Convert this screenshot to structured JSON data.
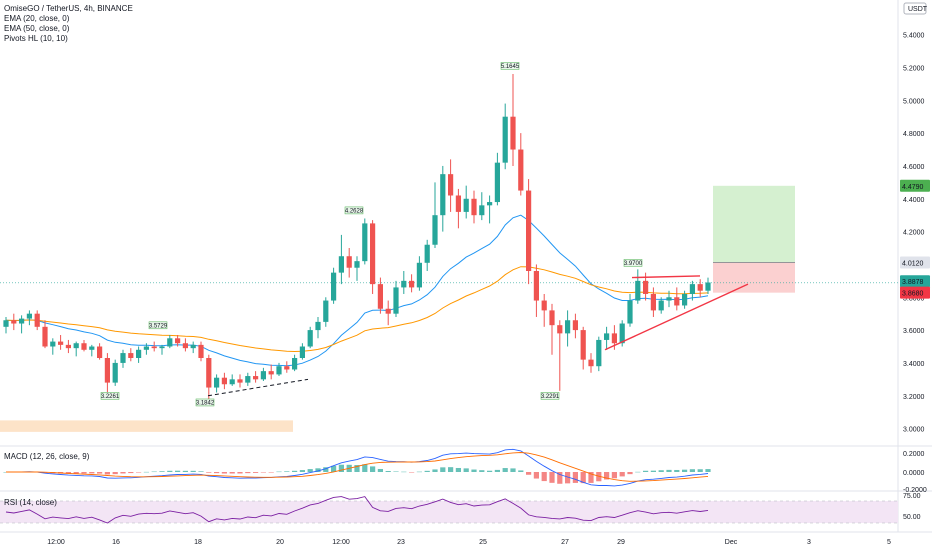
{
  "chart_data": [
    {
      "type": "candlestick",
      "title": "OmiseGO / TetherUS, 4h, BINANCE",
      "indicators": [
        "EMA (20, close, 0)",
        "EMA (50, close, 0)",
        "Pivots HL (10, 10)"
      ],
      "currency": "USDT",
      "y_ticks": [
        "5.4000",
        "5.2000",
        "5.0000",
        "4.8000",
        "4.6000",
        "4.4000",
        "4.2000",
        "4.0000",
        "3.8000",
        "3.6000",
        "3.4000",
        "3.2000",
        "3.0000"
      ],
      "ylim": [
        2.9,
        5.55
      ],
      "x_ticks": [
        "12:00",
        "16",
        "18",
        "20",
        "12:00",
        "23",
        "25",
        "27",
        "29",
        "Dec",
        "3",
        "5"
      ],
      "price_tags": {
        "target": "4.4790",
        "entry": "4.0120",
        "last": "3.8878",
        "stop": "3.8680"
      },
      "pivot_labels": {
        "high_1": "3.5729",
        "low_1": "3.2261",
        "low_2": "3.1842",
        "high_2": "4.2628",
        "high_3": "5.1645",
        "low_3": "3.2291",
        "high_4": "3.9700"
      },
      "candles": [
        [
          3.62,
          3.68,
          3.58,
          3.66
        ],
        [
          3.66,
          3.7,
          3.6,
          3.64
        ],
        [
          3.64,
          3.69,
          3.58,
          3.67
        ],
        [
          3.67,
          3.72,
          3.63,
          3.7
        ],
        [
          3.7,
          3.72,
          3.6,
          3.62
        ],
        [
          3.62,
          3.66,
          3.49,
          3.5
        ],
        [
          3.5,
          3.55,
          3.45,
          3.53
        ],
        [
          3.53,
          3.57,
          3.48,
          3.51
        ],
        [
          3.51,
          3.54,
          3.46,
          3.49
        ],
        [
          3.49,
          3.53,
          3.44,
          3.52
        ],
        [
          3.52,
          3.54,
          3.47,
          3.48
        ],
        [
          3.48,
          3.51,
          3.44,
          3.5
        ],
        [
          3.5,
          3.52,
          3.42,
          3.43
        ],
        [
          3.43,
          3.46,
          3.22,
          3.28
        ],
        [
          3.28,
          3.42,
          3.26,
          3.4
        ],
        [
          3.4,
          3.48,
          3.37,
          3.46
        ],
        [
          3.46,
          3.49,
          3.41,
          3.43
        ],
        [
          3.43,
          3.5,
          3.4,
          3.48
        ],
        [
          3.48,
          3.52,
          3.45,
          3.5
        ],
        [
          3.5,
          3.53,
          3.47,
          3.49
        ],
        [
          3.49,
          3.51,
          3.45,
          3.5
        ],
        [
          3.5,
          3.57,
          3.49,
          3.55
        ],
        [
          3.55,
          3.57,
          3.5,
          3.52
        ],
        [
          3.52,
          3.55,
          3.47,
          3.49
        ],
        [
          3.49,
          3.53,
          3.46,
          3.51
        ],
        [
          3.51,
          3.53,
          3.41,
          3.43
        ],
        [
          3.43,
          3.45,
          3.18,
          3.25
        ],
        [
          3.25,
          3.33,
          3.22,
          3.31
        ],
        [
          3.31,
          3.34,
          3.24,
          3.27
        ],
        [
          3.27,
          3.33,
          3.26,
          3.3
        ],
        [
          3.3,
          3.33,
          3.25,
          3.28
        ],
        [
          3.28,
          3.34,
          3.26,
          3.32
        ],
        [
          3.32,
          3.35,
          3.28,
          3.3
        ],
        [
          3.3,
          3.37,
          3.29,
          3.35
        ],
        [
          3.35,
          3.39,
          3.3,
          3.33
        ],
        [
          3.33,
          3.4,
          3.32,
          3.38
        ],
        [
          3.38,
          3.41,
          3.34,
          3.36
        ],
        [
          3.36,
          3.45,
          3.35,
          3.43
        ],
        [
          3.43,
          3.52,
          3.42,
          3.5
        ],
        [
          3.5,
          3.62,
          3.49,
          3.6
        ],
        [
          3.6,
          3.68,
          3.55,
          3.65
        ],
        [
          3.65,
          3.8,
          3.62,
          3.78
        ],
        [
          3.78,
          3.98,
          3.76,
          3.95
        ],
        [
          3.95,
          4.18,
          3.88,
          4.05
        ],
        [
          4.05,
          4.1,
          3.92,
          3.98
        ],
        [
          3.98,
          4.05,
          3.9,
          4.02
        ],
        [
          4.02,
          4.28,
          4.0,
          4.25
        ],
        [
          4.25,
          4.27,
          3.82,
          3.88
        ],
        [
          3.88,
          3.92,
          3.7,
          3.73
        ],
        [
          3.73,
          3.78,
          3.63,
          3.7
        ],
        [
          3.7,
          3.9,
          3.68,
          3.86
        ],
        [
          3.86,
          3.96,
          3.82,
          3.9
        ],
        [
          3.9,
          3.94,
          3.83,
          3.86
        ],
        [
          3.86,
          4.05,
          3.84,
          4.01
        ],
        [
          4.01,
          4.15,
          3.96,
          4.12
        ],
        [
          4.12,
          4.5,
          4.1,
          4.3
        ],
        [
          4.3,
          4.6,
          4.2,
          4.55
        ],
        [
          4.55,
          4.64,
          4.32,
          4.42
        ],
        [
          4.42,
          4.46,
          4.22,
          4.32
        ],
        [
          4.32,
          4.48,
          4.28,
          4.4
        ],
        [
          4.4,
          4.45,
          4.25,
          4.3
        ],
        [
          4.3,
          4.44,
          4.27,
          4.36
        ],
        [
          4.36,
          4.42,
          4.25,
          4.38
        ],
        [
          4.38,
          4.68,
          4.36,
          4.62
        ],
        [
          4.62,
          4.98,
          4.58,
          4.9
        ],
        [
          4.9,
          5.16,
          4.6,
          4.7
        ],
        [
          4.7,
          4.8,
          4.42,
          4.45
        ],
        [
          4.45,
          4.52,
          3.88,
          3.96
        ],
        [
          3.96,
          4.0,
          3.68,
          3.78
        ],
        [
          3.78,
          3.82,
          3.62,
          3.72
        ],
        [
          3.72,
          3.76,
          3.45,
          3.63
        ],
        [
          3.63,
          3.66,
          3.23,
          3.58
        ],
        [
          3.58,
          3.72,
          3.5,
          3.66
        ],
        [
          3.66,
          3.7,
          3.55,
          3.6
        ],
        [
          3.6,
          3.62,
          3.36,
          3.42
        ],
        [
          3.42,
          3.46,
          3.34,
          3.38
        ],
        [
          3.38,
          3.56,
          3.35,
          3.54
        ],
        [
          3.54,
          3.62,
          3.48,
          3.58
        ],
        [
          3.58,
          3.63,
          3.48,
          3.52
        ],
        [
          3.52,
          3.66,
          3.5,
          3.64
        ],
        [
          3.64,
          3.82,
          3.62,
          3.78
        ],
        [
          3.78,
          3.97,
          3.76,
          3.9
        ],
        [
          3.9,
          3.95,
          3.78,
          3.82
        ],
        [
          3.82,
          3.86,
          3.68,
          3.72
        ],
        [
          3.72,
          3.8,
          3.7,
          3.78
        ],
        [
          3.78,
          3.84,
          3.74,
          3.8
        ],
        [
          3.8,
          3.86,
          3.72,
          3.75
        ],
        [
          3.75,
          3.84,
          3.73,
          3.82
        ],
        [
          3.82,
          3.9,
          3.78,
          3.88
        ],
        [
          3.88,
          3.91,
          3.8,
          3.84
        ],
        [
          3.84,
          3.92,
          3.82,
          3.89
        ]
      ],
      "macd_scale": [
        "0.2000",
        "0.0000",
        "-0.2000"
      ],
      "rsi_scale": [
        "75.00",
        "50.00"
      ],
      "macd_title": "MACD (12, 26, close, 9)",
      "rsi_title": "RSI (14, close)",
      "colors": {
        "up": "#26a69a",
        "down": "#ef5350",
        "ema20": "#2196f3",
        "ema50": "#ff9800",
        "rsi": "#7b1fa2",
        "rsi_band": "#f3e5f5",
        "target_zone": "#d5f0d0",
        "stop_zone": "#fbd0d0",
        "support_zone": "#fde3c8",
        "trend_line": "#f23645",
        "last_price_line": "#26a69a"
      }
    }
  ]
}
